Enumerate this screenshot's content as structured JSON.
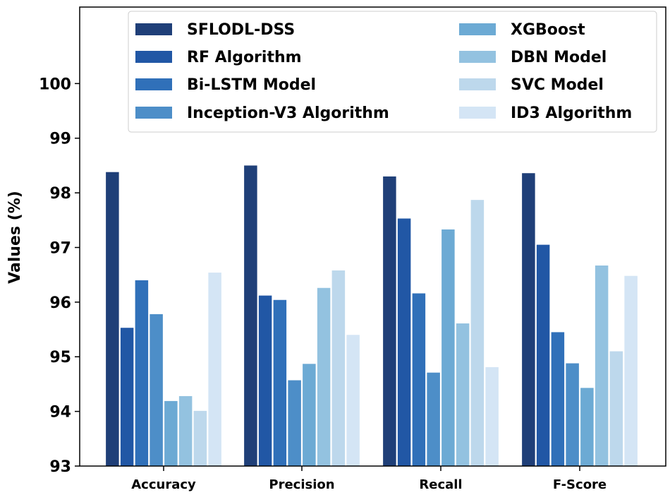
{
  "chart_data": {
    "type": "bar",
    "title": "",
    "xlabel": "",
    "ylabel": "Values (%)",
    "ylim": [
      93,
      101.4
    ],
    "yticks": [
      93,
      94,
      95,
      96,
      97,
      98,
      99,
      100
    ],
    "grid": false,
    "legend_position": "top",
    "categories": [
      "Accuracy",
      "Precision",
      "Recall",
      "F-Score"
    ],
    "series": [
      {
        "name": "SFLODL-DSS",
        "color": "#1f3f78",
        "values": [
          98.38,
          98.5,
          98.3,
          98.36
        ]
      },
      {
        "name": "RF Algorithm",
        "color": "#2157a5",
        "values": [
          95.53,
          96.12,
          97.53,
          97.05
        ]
      },
      {
        "name": "Bi-LSTM Model",
        "color": "#3070b9",
        "values": [
          96.4,
          96.04,
          96.16,
          95.45
        ]
      },
      {
        "name": "Inception-V3 Algorithm",
        "color": "#4d8ec8",
        "values": [
          95.78,
          94.57,
          94.71,
          94.88
        ]
      },
      {
        "name": "XGBoost",
        "color": "#6caad4",
        "values": [
          94.19,
          94.87,
          97.33,
          94.43
        ]
      },
      {
        "name": "DBN Model",
        "color": "#93c2e0",
        "values": [
          94.28,
          96.26,
          95.61,
          96.67
        ]
      },
      {
        "name": "SVC Model",
        "color": "#bdd8ec",
        "values": [
          94.01,
          96.58,
          97.87,
          95.1
        ]
      },
      {
        "name": "ID3 Algorithm",
        "color": "#d4e5f5",
        "values": [
          96.54,
          95.4,
          94.81,
          96.48
        ]
      }
    ]
  }
}
